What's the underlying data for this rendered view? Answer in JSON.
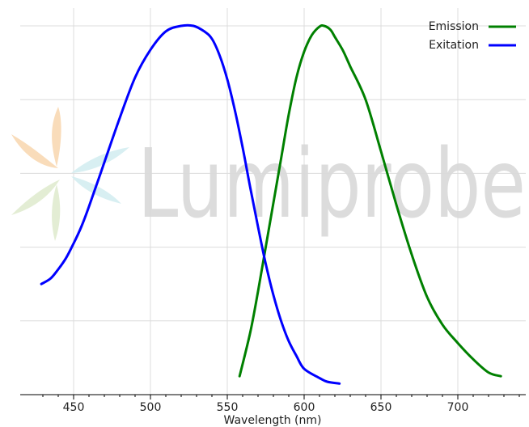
{
  "chart_data": {
    "type": "line",
    "xlabel": "Wavelength (nm)",
    "ylabel": "",
    "title": "",
    "xlim": [
      422,
      740
    ],
    "ylim": [
      0,
      1.0
    ],
    "x_ticks": [
      450,
      500,
      550,
      600,
      650,
      700
    ],
    "x_tick_labels": [
      "450",
      "500",
      "550",
      "600",
      "650",
      "700"
    ],
    "y_gridlines": [
      0.2,
      0.4,
      0.6,
      0.8,
      1.0
    ],
    "grid": true,
    "legend_position": "top-right",
    "series": [
      {
        "name": "Emission",
        "color": "#008000",
        "points": [
          [
            558,
            0.05
          ],
          [
            565,
            0.17
          ],
          [
            570,
            0.28
          ],
          [
            575,
            0.4
          ],
          [
            580,
            0.52
          ],
          [
            585,
            0.64
          ],
          [
            590,
            0.76
          ],
          [
            595,
            0.86
          ],
          [
            600,
            0.93
          ],
          [
            605,
            0.975
          ],
          [
            610,
            0.998
          ],
          [
            613,
            1.0
          ],
          [
            617,
            0.99
          ],
          [
            620,
            0.97
          ],
          [
            625,
            0.935
          ],
          [
            630,
            0.89
          ],
          [
            640,
            0.8
          ],
          [
            650,
            0.66
          ],
          [
            660,
            0.515
          ],
          [
            670,
            0.38
          ],
          [
            680,
            0.265
          ],
          [
            690,
            0.19
          ],
          [
            700,
            0.14
          ],
          [
            710,
            0.096
          ],
          [
            720,
            0.06
          ],
          [
            728,
            0.05
          ]
        ]
      },
      {
        "name": "Exitation",
        "color": "#0000ff",
        "points": [
          [
            429,
            0.3
          ],
          [
            435,
            0.315
          ],
          [
            440,
            0.34
          ],
          [
            445,
            0.37
          ],
          [
            450,
            0.41
          ],
          [
            455,
            0.455
          ],
          [
            460,
            0.51
          ],
          [
            470,
            0.63
          ],
          [
            480,
            0.75
          ],
          [
            490,
            0.86
          ],
          [
            500,
            0.935
          ],
          [
            510,
            0.985
          ],
          [
            520,
            1.0
          ],
          [
            528,
            1.0
          ],
          [
            535,
            0.985
          ],
          [
            540,
            0.965
          ],
          [
            545,
            0.92
          ],
          [
            550,
            0.855
          ],
          [
            555,
            0.77
          ],
          [
            560,
            0.67
          ],
          [
            565,
            0.56
          ],
          [
            570,
            0.455
          ],
          [
            575,
            0.355
          ],
          [
            580,
            0.27
          ],
          [
            585,
            0.2
          ],
          [
            590,
            0.145
          ],
          [
            595,
            0.105
          ],
          [
            600,
            0.07
          ],
          [
            610,
            0.045
          ],
          [
            615,
            0.035
          ],
          [
            623,
            0.03
          ]
        ]
      }
    ],
    "watermark": {
      "text": "Lumiprobe",
      "logo_icon": "lumiprobe-logo-icon",
      "color": "#d9d9d9"
    }
  }
}
